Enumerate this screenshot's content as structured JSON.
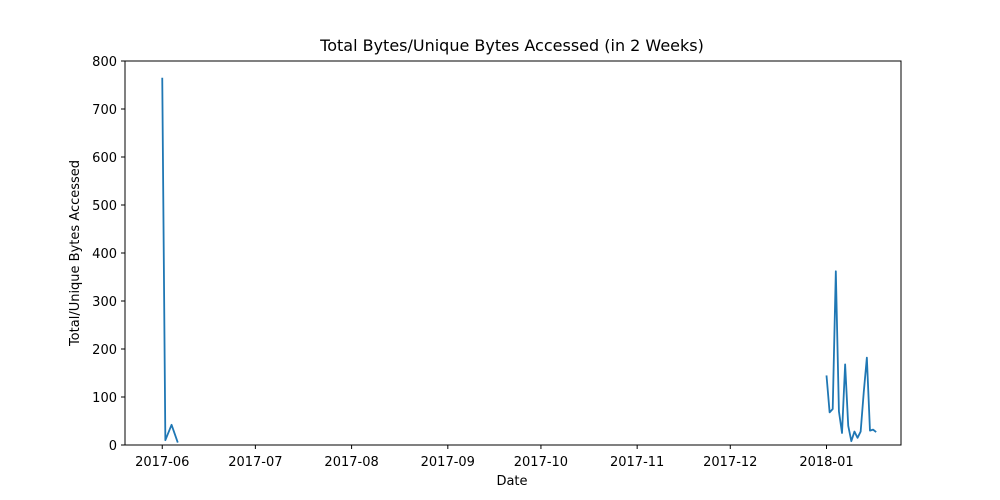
{
  "chart_data": {
    "type": "line",
    "title": "Total Bytes/Unique Bytes Accessed (in 2 Weeks)",
    "xlabel": "Date",
    "ylabel": "Total/Unique Bytes Accessed",
    "xlim": [
      "2017-05-20",
      "2018-01-25"
    ],
    "ylim": [
      0,
      800
    ],
    "x_ticks": [
      "2017-06",
      "2017-07",
      "2017-08",
      "2017-09",
      "2017-10",
      "2017-11",
      "2017-12",
      "2018-01"
    ],
    "y_ticks": [
      0,
      100,
      200,
      300,
      400,
      500,
      600,
      700,
      800
    ],
    "grid": false,
    "line_color": "#1f77b4",
    "segments": [
      {
        "points": [
          {
            "x": "2017-06-01",
            "y": 765
          },
          {
            "x": "2017-06-02",
            "y": 10
          },
          {
            "x": "2017-06-04",
            "y": 42
          },
          {
            "x": "2017-06-06",
            "y": 5
          }
        ]
      },
      {
        "points": [
          {
            "x": "2018-01-01",
            "y": 145
          },
          {
            "x": "2018-01-02",
            "y": 68
          },
          {
            "x": "2018-01-03",
            "y": 75
          },
          {
            "x": "2018-01-04",
            "y": 362
          },
          {
            "x": "2018-01-05",
            "y": 70
          },
          {
            "x": "2018-01-06",
            "y": 25
          },
          {
            "x": "2018-01-07",
            "y": 168
          },
          {
            "x": "2018-01-08",
            "y": 40
          },
          {
            "x": "2018-01-09",
            "y": 8
          },
          {
            "x": "2018-01-10",
            "y": 28
          },
          {
            "x": "2018-01-11",
            "y": 15
          },
          {
            "x": "2018-01-12",
            "y": 28
          },
          {
            "x": "2018-01-13",
            "y": 110
          },
          {
            "x": "2018-01-14",
            "y": 182
          },
          {
            "x": "2018-01-15",
            "y": 30
          },
          {
            "x": "2018-01-16",
            "y": 32
          },
          {
            "x": "2018-01-17",
            "y": 27
          }
        ]
      }
    ]
  }
}
